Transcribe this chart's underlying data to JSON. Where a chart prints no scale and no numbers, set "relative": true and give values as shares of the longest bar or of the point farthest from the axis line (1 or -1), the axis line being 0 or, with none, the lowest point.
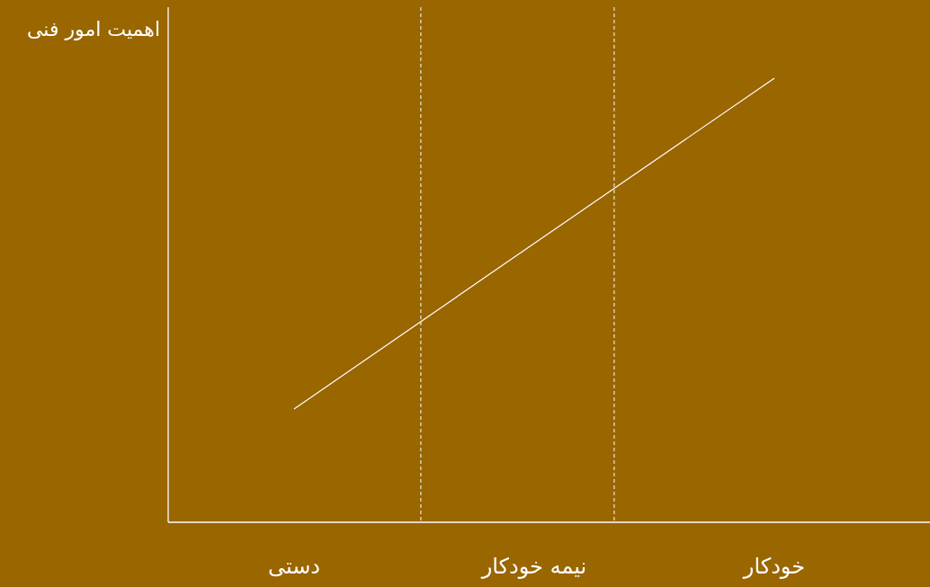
{
  "chart_data": {
    "type": "line",
    "relative": true,
    "ylabel": "اهمیت امور فنی",
    "categories": [
      "دستی",
      "نیمه خودکار",
      "خودکار"
    ],
    "tick_labels": "x",
    "marker": "none",
    "line_style": "solid",
    "series": [
      {
        "color": "#ffffff",
        "values": [
          0.255,
          0.628,
          1
        ]
      }
    ]
  }
}
